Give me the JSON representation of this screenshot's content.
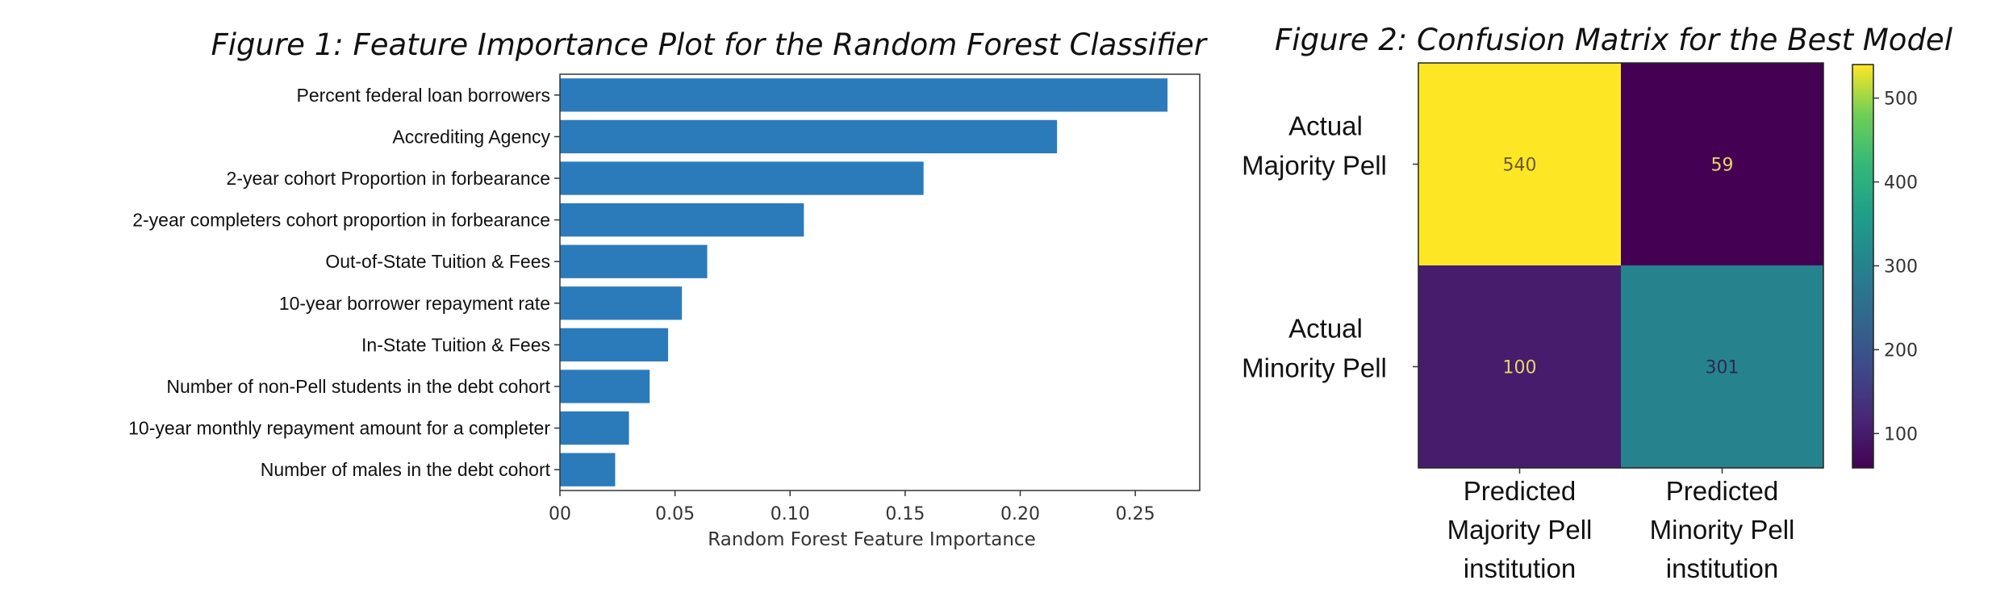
{
  "figure1": {
    "title": "Figure 1: Feature Importance Plot for the Random Forest Classifier"
  },
  "figure2": {
    "title": "Figure 2: Confusion Matrix for the Best Model"
  },
  "colors": {
    "bar": "#2b7bba",
    "viridis_low": "#440154",
    "viridis_high": "#fde725",
    "text_on_dark": "#e6d56a",
    "text_on_teal": "#2a2a55"
  },
  "chart_data": [
    {
      "type": "bar",
      "orientation": "horizontal",
      "categories": [
        "Percent federal loan borrowers",
        "Accrediting Agency",
        "2-year cohort Proportion in forbearance",
        "2-year completers cohort proportion in forbearance",
        "Out-of-State Tuition & Fees",
        "10-year borrower repayment rate",
        "In-State Tuition & Fees",
        "Number of non-Pell students in the debt cohort",
        "10-year monthly repayment amount for a completer",
        "Number of males in the debt cohort"
      ],
      "values": [
        0.264,
        0.216,
        0.158,
        0.106,
        0.064,
        0.053,
        0.047,
        0.039,
        0.03,
        0.024
      ],
      "xlabel": "Random Forest Feature Importance",
      "xlim": [
        0,
        0.278
      ],
      "xticks": [
        0.0,
        0.05,
        0.1,
        0.15,
        0.2,
        0.25
      ],
      "xtick_labels": [
        "00",
        "0.05",
        "0.10",
        "0.15",
        "0.20",
        "0.25"
      ],
      "grid": false
    },
    {
      "type": "heatmap",
      "colormap": "viridis",
      "row_labels": [
        [
          "Actual",
          "Majority Pell"
        ],
        [
          "Actual",
          "Minority Pell"
        ]
      ],
      "col_labels": [
        [
          "Predicted",
          "Majority Pell",
          "institution"
        ],
        [
          "Predicted",
          "Minority Pell",
          "institution"
        ]
      ],
      "values": [
        [
          540,
          59
        ],
        [
          100,
          301
        ]
      ],
      "colorbar": {
        "range": [
          59,
          540
        ],
        "ticks": [
          100,
          200,
          300,
          400,
          500
        ],
        "tick_labels": [
          "100",
          "200",
          "300",
          "400",
          "500"
        ]
      }
    }
  ]
}
